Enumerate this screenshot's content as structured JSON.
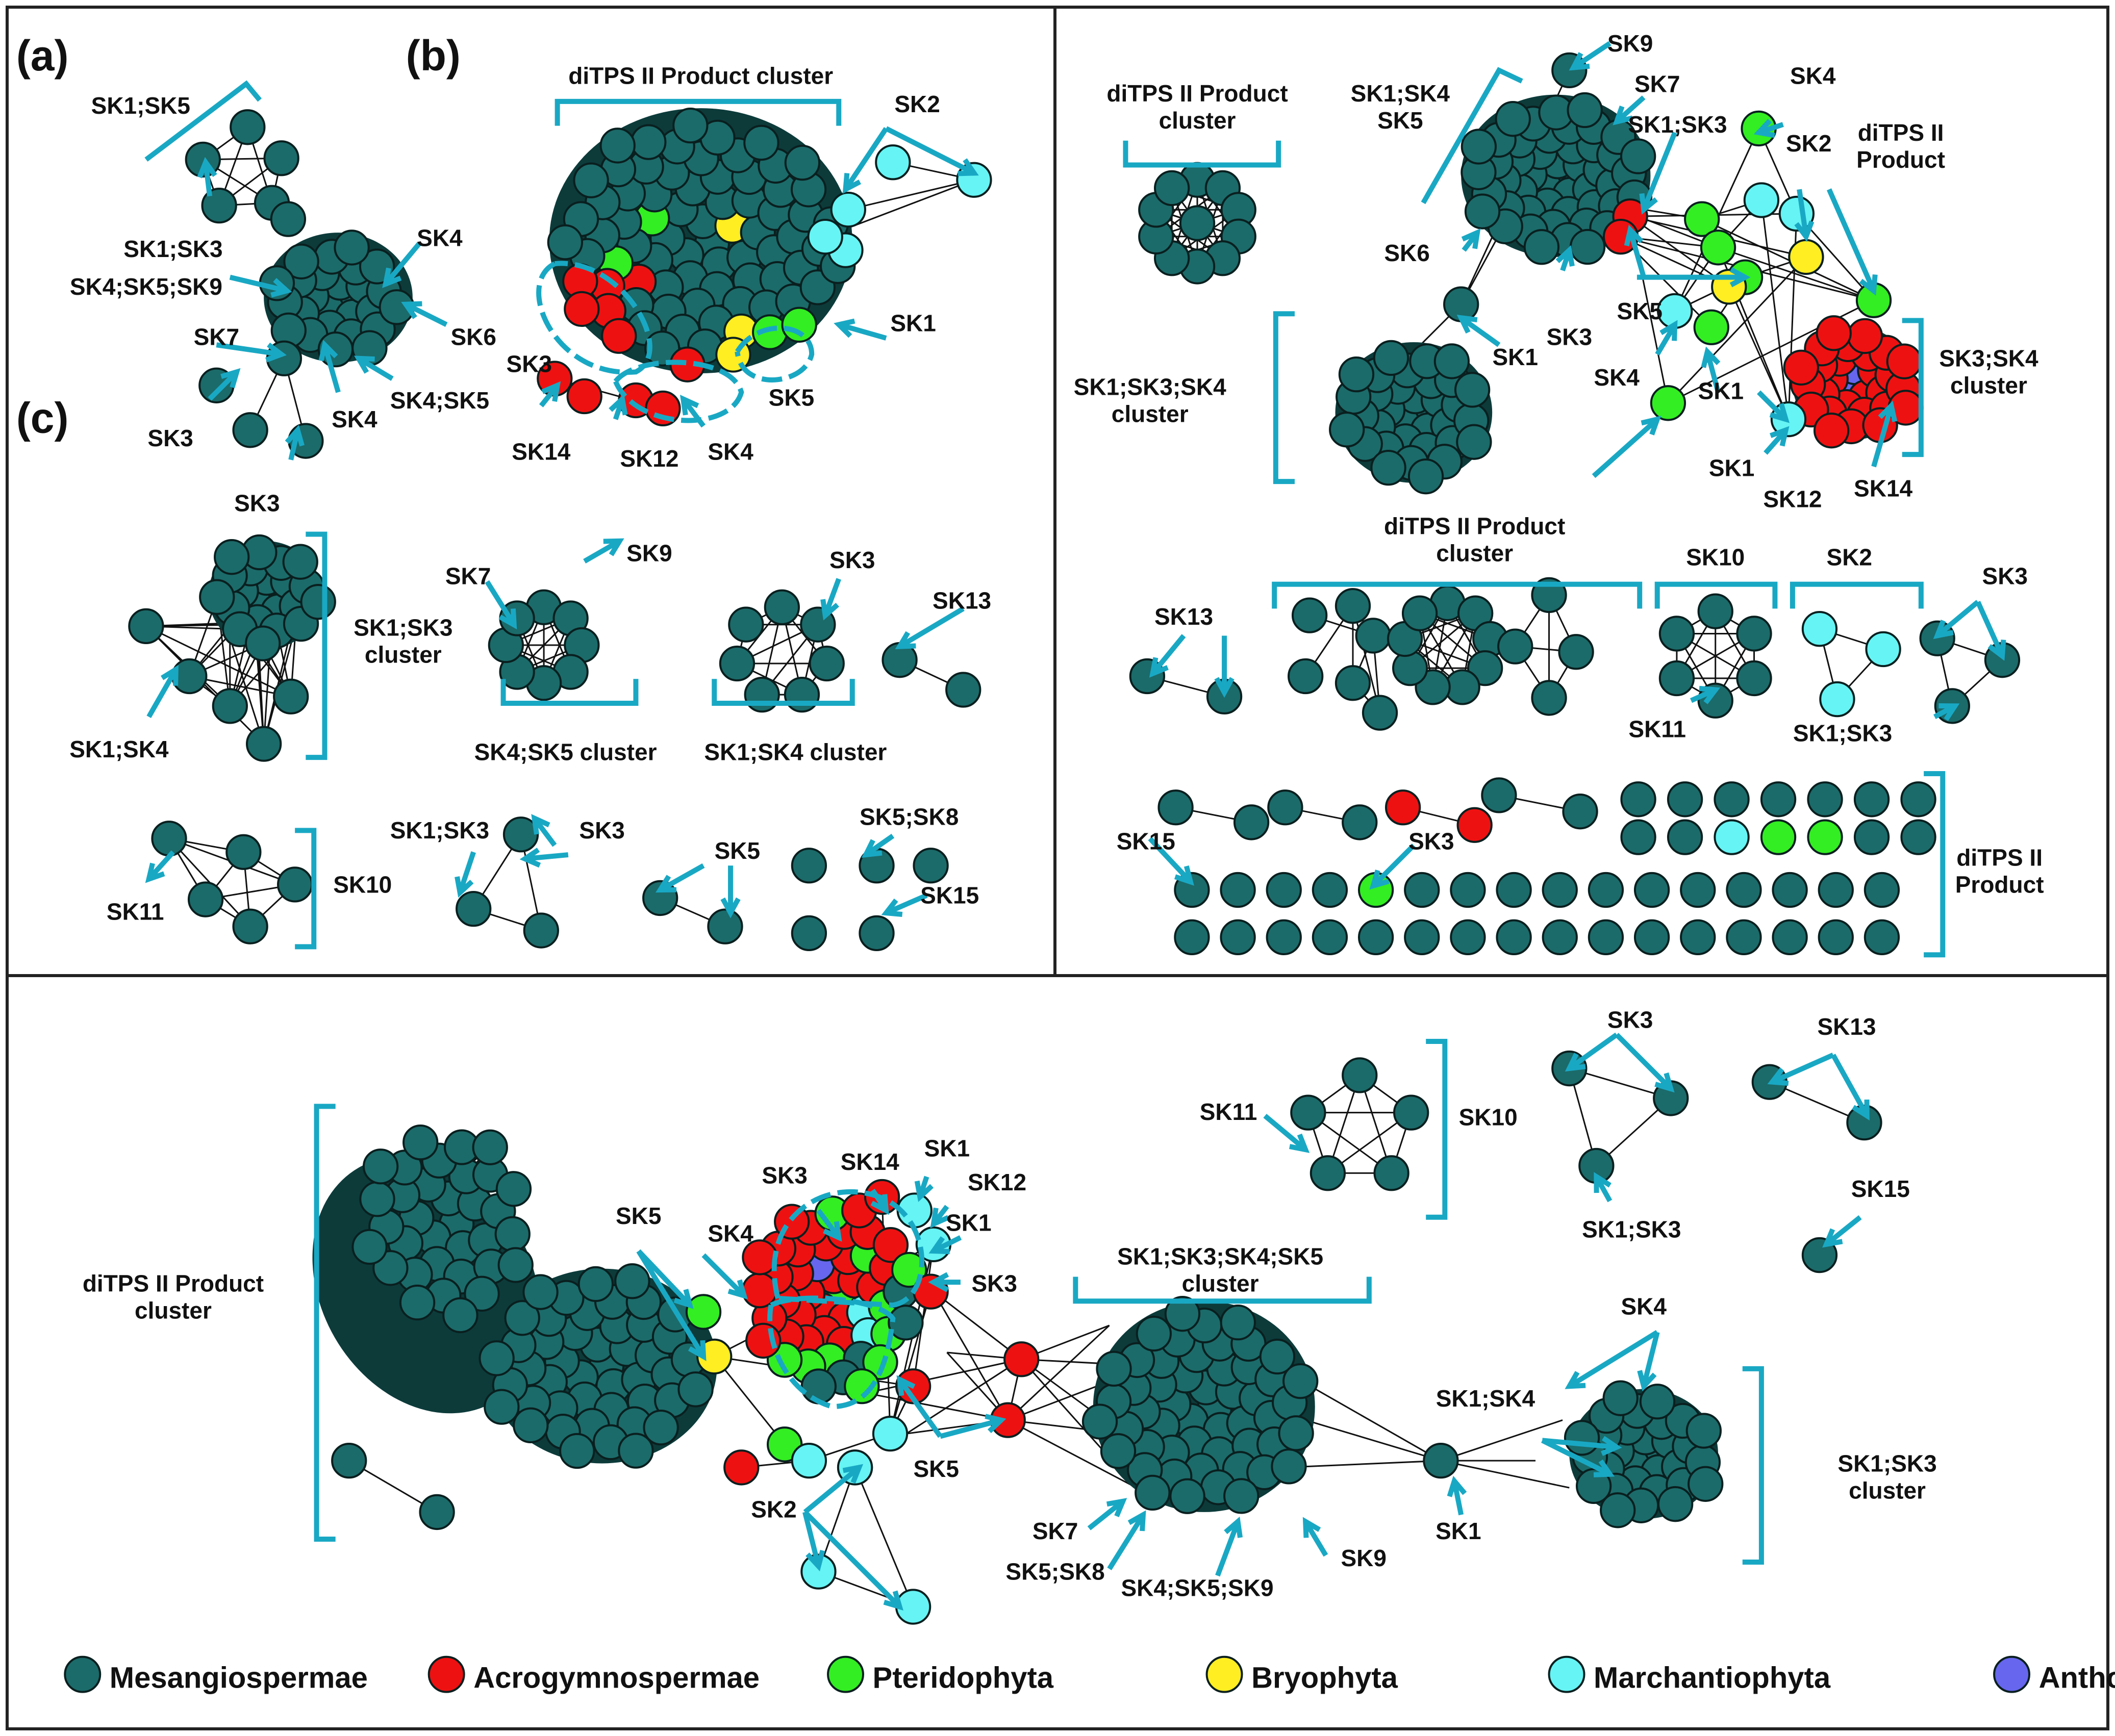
{
  "colors": {
    "Mesangiospermae": "#1b6b6a",
    "Acrogymnospermae": "#ee1111",
    "Pteridophyta": "#33ee22",
    "Bryophyta": "#ffee22",
    "Marchantiophyta": "#66f4f4",
    "Anthocerotopsida": "#6666ee",
    "accent": "#19a8c4"
  },
  "panels": {
    "a": {
      "label": "(a)",
      "annotations": [
        "diTPS II Product cluster",
        "SK1;SK5",
        "SK1;SK3",
        "SK4;SK5;SK9",
        "SK7",
        "SK3",
        "SK4",
        "SK6",
        "SK4",
        "SK4;SK5",
        "SK3",
        "SK3",
        "SK14",
        "SK12",
        "SK4",
        "SK5",
        "SK1",
        "SK2",
        "SK1;SK3 cluster",
        "SK1;SK4",
        "SK7",
        "SK9",
        "SK4;SK5 cluster",
        "SK3",
        "SK1;SK4 cluster",
        "SK13",
        "SK11",
        "SK10",
        "SK1;SK3",
        "SK3",
        "SK5",
        "SK5;SK8",
        "SK15"
      ]
    },
    "b": {
      "label": "(b)",
      "annotations": [
        "diTPS II Product cluster",
        "SK1;SK4 SK5",
        "SK9",
        "SK7",
        "SK4",
        "SK1;SK3",
        "SK2",
        "diTPS II Product",
        "SK6",
        "SK3",
        "SK5",
        "SK4",
        "SK1",
        "SK1;SK3;SK4 cluster",
        "SK3;SK4 cluster",
        "SK1",
        "SK1",
        "SK12",
        "SK14",
        "diTPS II Product cluster",
        "SK10",
        "SK2",
        "SK13",
        "SK3",
        "SK11",
        "SK1;SK3",
        "SK15",
        "SK3",
        "diTPS II Product"
      ]
    },
    "c": {
      "label": "(c)",
      "annotations": [
        "diTPS II Product cluster",
        "SK5",
        "SK4",
        "SK3",
        "SK14",
        "SK1",
        "SK12",
        "SK1",
        "SK3",
        "SK5",
        "SK2",
        "SK1;SK3;SK4;SK5 cluster",
        "SK7",
        "SK5;SK8",
        "SK4;SK5;SK9",
        "SK9",
        "SK1",
        "SK1;SK4",
        "SK4",
        "SK1;SK3 cluster",
        "SK11",
        "SK10",
        "SK3",
        "SK1;SK3",
        "SK13",
        "SK15"
      ]
    }
  },
  "legend": [
    {
      "name": "Mesangiospermae",
      "color": "#1b6b6a"
    },
    {
      "name": "Acrogymnospermae",
      "color": "#ee1111"
    },
    {
      "name": "Pteridophyta",
      "color": "#33ee22"
    },
    {
      "name": "Bryophyta",
      "color": "#ffee22"
    },
    {
      "name": "Marchantiophyta",
      "color": "#66f4f4"
    },
    {
      "name": "Anthocerotopsida",
      "color": "#6666ee"
    }
  ]
}
